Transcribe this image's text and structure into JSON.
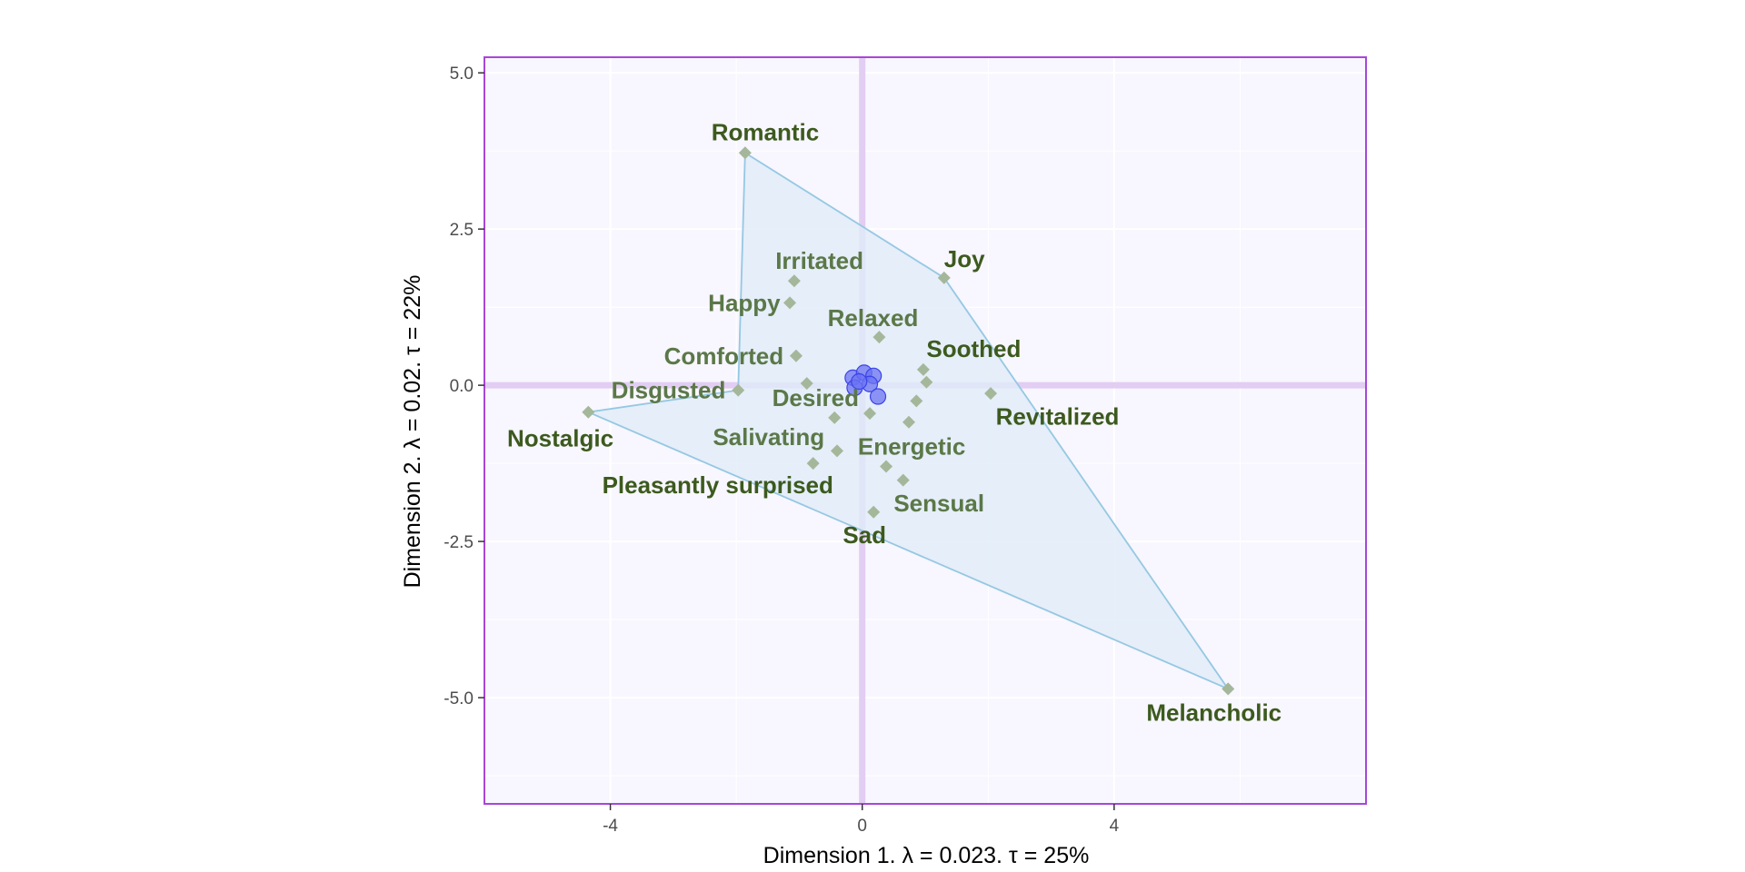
{
  "chart_data": {
    "type": "scatter",
    "xlabel": "Dimension 1.   λ = 0.023.  τ = 25%",
    "ylabel": "Dimension 2.   λ = 0.02.  τ = 22%",
    "xlim": [
      -6.0,
      8.0
    ],
    "ylim": [
      -6.7,
      5.25
    ],
    "x_ticks": [
      {
        "value": -4,
        "label": "-4"
      },
      {
        "value": 0,
        "label": "0"
      },
      {
        "value": 4,
        "label": "4"
      }
    ],
    "y_ticks": [
      {
        "value": 5.0,
        "label": "5.0"
      },
      {
        "value": 2.5,
        "label": "2.5"
      },
      {
        "value": 0.0,
        "label": "0.0"
      },
      {
        "value": -2.5,
        "label": "-2.5"
      },
      {
        "value": -5.0,
        "label": "-5.0"
      }
    ],
    "grid": true,
    "legend": "none",
    "hull": [
      "Romantic",
      "Joy",
      "Melancholic",
      "Nostalgic",
      "Disgusted"
    ],
    "variables": [
      {
        "name": "Romantic",
        "x": -1.86,
        "y": 3.72,
        "anchor": "middle",
        "dx": 0.32,
        "dy": 0.33,
        "color": "#3c5a1e"
      },
      {
        "name": "Joy",
        "x": 1.3,
        "y": 1.72,
        "anchor": "start",
        "dx": 0.0,
        "dy": 0.3,
        "color": "#3c5a1e"
      },
      {
        "name": "Irritated",
        "x": -1.08,
        "y": 1.67,
        "anchor": "middle",
        "dx": 0.4,
        "dy": 0.32,
        "color": "#5b7848"
      },
      {
        "name": "Happy",
        "x": -1.15,
        "y": 1.32,
        "anchor": "end",
        "dx": -0.15,
        "dy": 0.0,
        "color": "#5b7848"
      },
      {
        "name": "Relaxed",
        "x": 0.27,
        "y": 0.77,
        "anchor": "middle",
        "dx": -0.1,
        "dy": 0.31,
        "color": "#5b7848"
      },
      {
        "name": "Comforted",
        "x": -1.05,
        "y": 0.47,
        "anchor": "end",
        "dx": -0.2,
        "dy": 0.0,
        "color": "#5b7848"
      },
      {
        "name": "Soothed",
        "x": 0.97,
        "y": 0.25,
        "anchor": "start",
        "dx": 0.05,
        "dy": 0.33,
        "color": "#3c5a1e"
      },
      {
        "name": "Disgusted",
        "x": -1.97,
        "y": -0.08,
        "anchor": "end",
        "dx": -0.2,
        "dy": 0.0,
        "color": "#5b7848"
      },
      {
        "name": "Desired",
        "x": -0.88,
        "y": 0.03,
        "anchor": "start",
        "dx": -0.55,
        "dy": -0.23,
        "color": "#5b7848"
      },
      {
        "name": "Nostalgic",
        "x": -4.35,
        "y": -0.43,
        "anchor": "end",
        "dx": 0.4,
        "dy": -0.42,
        "color": "#3c5a1e"
      },
      {
        "name": "Revitalized",
        "x": 2.04,
        "y": -0.13,
        "anchor": "start",
        "dx": 0.08,
        "dy": -0.37,
        "color": "#3c5a1e"
      },
      {
        "name": "Salivating",
        "x": -0.4,
        "y": -1.05,
        "anchor": "end",
        "dx": -0.2,
        "dy": 0.22,
        "color": "#5b7848"
      },
      {
        "name": "Energetic",
        "x": 0.38,
        "y": -1.3,
        "anchor": "start",
        "dx": -0.45,
        "dy": 0.32,
        "color": "#5b7848"
      },
      {
        "name": "Pleasantly surprised",
        "x": -0.78,
        "y": -1.25,
        "anchor": "start",
        "dx": -3.35,
        "dy": -0.35,
        "color": "#3c5a1e"
      },
      {
        "name": "Sensual",
        "x": 0.65,
        "y": -1.52,
        "anchor": "start",
        "dx": -0.15,
        "dy": -0.37,
        "color": "#5b7848"
      },
      {
        "name": "Sad",
        "x": 0.18,
        "y": -2.03,
        "anchor": "end",
        "dx": 0.2,
        "dy": -0.37,
        "color": "#3c5a1e"
      },
      {
        "name": "Melancholic",
        "x": 5.81,
        "y": -4.86,
        "anchor": "end",
        "dx": 0.85,
        "dy": -0.38,
        "color": "#3c5a1e"
      }
    ],
    "unlabeled_variables": [
      {
        "x": 1.02,
        "y": 0.05
      },
      {
        "x": 0.86,
        "y": -0.25
      },
      {
        "x": 0.74,
        "y": -0.59
      },
      {
        "x": 0.12,
        "y": -0.45
      },
      {
        "x": -0.44,
        "y": -0.52
      }
    ],
    "observations": [
      {
        "x": -0.15,
        "y": 0.12
      },
      {
        "x": 0.03,
        "y": 0.2
      },
      {
        "x": 0.18,
        "y": 0.15
      },
      {
        "x": 0.12,
        "y": 0.02
      },
      {
        "x": -0.12,
        "y": -0.04
      },
      {
        "x": 0.25,
        "y": -0.18
      },
      {
        "x": -0.05,
        "y": 0.06
      }
    ],
    "colors": {
      "panel_background": "#f8f6fe",
      "panel_border": "#a846d8",
      "gridline": "#ffffff",
      "origin_line": "#e2cdf3",
      "hull_fill": "#e0ecf7",
      "hull_stroke": "#95c8e2",
      "variable_point": "#a5b79a",
      "observation_fill": "#6b73f2",
      "observation_stroke": "#3a43e8"
    }
  }
}
